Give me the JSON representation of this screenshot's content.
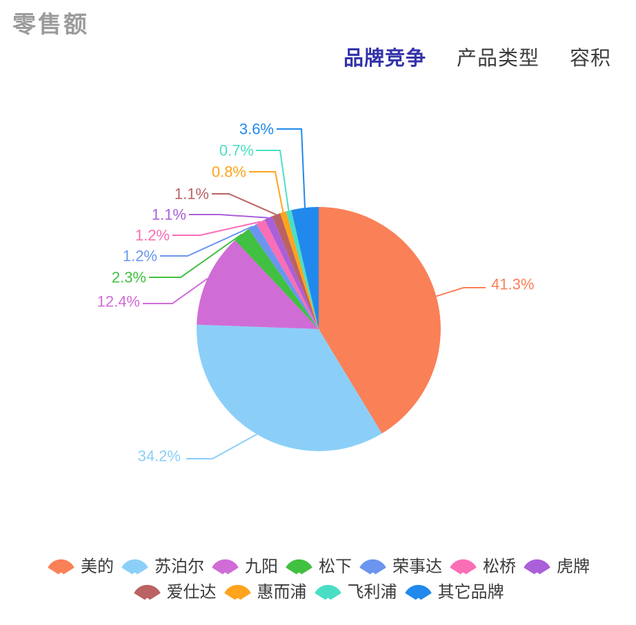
{
  "title": "零售额",
  "tabs": [
    {
      "label": "品牌竞争",
      "active": true
    },
    {
      "label": "产品类型",
      "active": false
    },
    {
      "label": "容积",
      "active": false
    }
  ],
  "colors": {
    "background": "#FFFFFF",
    "title_text": "#9B9B9B",
    "tab_active": "#3333AA",
    "tab_inactive": "#3D3D3D",
    "legend_text": "#3A3A3A"
  },
  "chart_data": {
    "type": "pie",
    "title": "零售额",
    "unit": "%",
    "start_angle": "top",
    "direction": "clockwise",
    "legend_position": "bottom",
    "series": [
      {
        "name": "美的",
        "value": 41.3,
        "label": "41.3%",
        "color": "#FA8057"
      },
      {
        "name": "苏泊尔",
        "value": 34.2,
        "label": "34.2%",
        "color": "#8BCFF8"
      },
      {
        "name": "九阳",
        "value": 12.4,
        "label": "12.4%",
        "color": "#D06CD6"
      },
      {
        "name": "松下",
        "value": 2.3,
        "label": "2.3%",
        "color": "#41C041"
      },
      {
        "name": "荣事达",
        "value": 1.2,
        "label": "1.2%",
        "color": "#6B95EE"
      },
      {
        "name": "松桥",
        "value": 1.2,
        "label": "1.2%",
        "color": "#FA6EB6"
      },
      {
        "name": "虎牌",
        "value": 1.1,
        "label": "1.1%",
        "color": "#AA60D8"
      },
      {
        "name": "爱仕达",
        "value": 1.1,
        "label": "1.1%",
        "color": "#BB6262"
      },
      {
        "name": "惠而浦",
        "value": 0.8,
        "label": "0.8%",
        "color": "#FFA41C"
      },
      {
        "name": "飞利浦",
        "value": 0.7,
        "label": "0.7%",
        "color": "#4ADFC4"
      },
      {
        "name": "其它品牌",
        "value": 3.6,
        "label": "3.6%",
        "color": "#2189EC"
      }
    ]
  }
}
